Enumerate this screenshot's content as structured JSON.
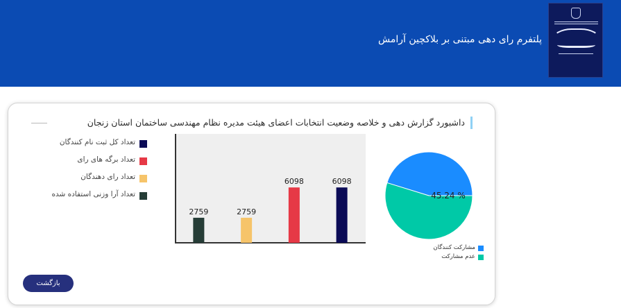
{
  "header": {
    "app_title": "پلتفرم رای دهی مبتنی بر بلاکچین آرامش"
  },
  "dashboard": {
    "title": "داشبورد گزارش دهی و خلاصه وضعیت انتخابات اعضای هیئت مدیره نظام مهندسی ساختمان استان زنجان",
    "back_label": "بازگشت"
  },
  "colors": {
    "header_bg": "#0b4bb3",
    "button_bg": "#26307d",
    "title_accent": "#8fd1f5"
  },
  "chart_data": [
    {
      "type": "bar",
      "categories": [
        "تعداد کل ثبت نام کنندگان",
        "تعداد برگه های رای",
        "تعداد رای دهندگان",
        "تعداد آرا وزنی استفاده شده"
      ],
      "values": [
        6098,
        6098,
        2759,
        2759
      ],
      "colors": [
        "#0b0b56",
        "#e63946",
        "#f6c46a",
        "#263d37"
      ],
      "display_order": [
        3,
        2,
        1,
        0
      ],
      "data_labels": [
        "6098",
        "6098",
        "2759",
        "2759"
      ],
      "title": "",
      "xlabel": "",
      "ylabel": "",
      "ylim": [
        0,
        12000
      ],
      "grid": false,
      "legend": "left"
    },
    {
      "type": "pie",
      "labels": [
        "مشارکت کنندگان",
        "عدم مشارکت"
      ],
      "values": [
        45.24,
        54.76
      ],
      "colors": [
        "#1a8cff",
        "#00c9a7"
      ],
      "data_label": "45.24 %",
      "legend": "bottom"
    }
  ]
}
